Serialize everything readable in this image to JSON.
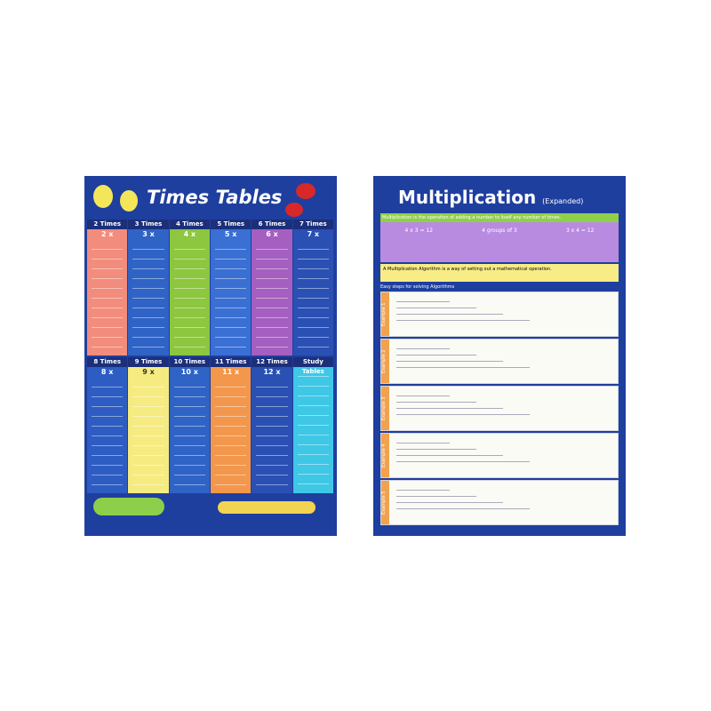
{
  "left_poster": {
    "title": "Times Tables",
    "columns": [
      {
        "header": "2 Times",
        "sub": "2 x",
        "color": "#f28c7c"
      },
      {
        "header": "3 Times",
        "sub": "3 x",
        "color": "#2f63c6"
      },
      {
        "header": "4 Times",
        "sub": "4 x",
        "color": "#8dc63f"
      },
      {
        "header": "5 Times",
        "sub": "5 x",
        "color": "#3a6fd4"
      },
      {
        "header": "6 Times",
        "sub": "6 x",
        "color": "#a45fc0"
      },
      {
        "header": "7 Times",
        "sub": "7 x",
        "color": "#2a50b4"
      },
      {
        "header": "8 Times",
        "sub": "8 x",
        "color": "#2d5cc2"
      },
      {
        "header": "9 Times",
        "sub": "9 x",
        "color": "#f6eb80"
      },
      {
        "header": "10 Times",
        "sub": "10 x",
        "color": "#2f63c6"
      },
      {
        "header": "11 Times",
        "sub": "11 x",
        "color": "#f2974c"
      },
      {
        "header": "12 Times",
        "sub": "12 x",
        "color": "#2a50b4"
      },
      {
        "header": "Study Tables",
        "sub": null,
        "color": "#3fc7e6"
      }
    ]
  },
  "right_poster": {
    "title": "Multiplication",
    "subtitle": "(Expanded)",
    "definition": "Multiplication is the operation of adding a number to itself any number of times.",
    "groups": [
      "4 x 3 = 12",
      "4 groups of 3",
      "3 x 4 = 12"
    ],
    "algorithm_note": "A Multiplication Algorithm is a way of setting out a mathematical operation.",
    "steps_heading": "Easy steps for solving Algorithms",
    "examples": [
      "Example 1",
      "Example 2",
      "Example 3",
      "Example 4",
      "Example 5"
    ]
  }
}
